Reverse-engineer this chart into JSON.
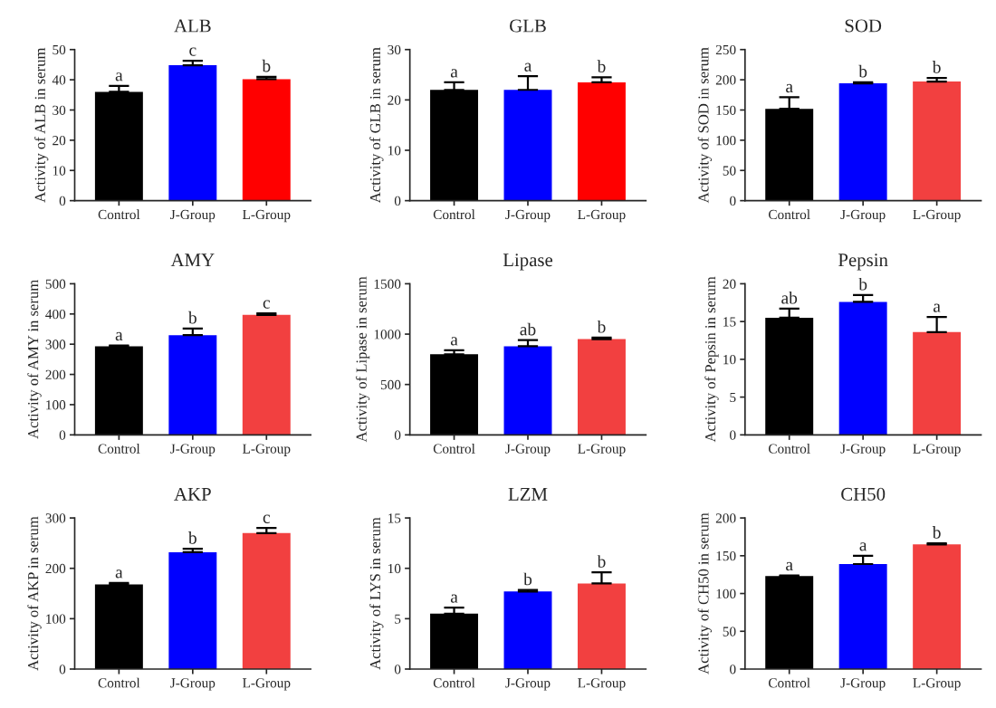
{
  "chart_data": [
    {
      "type": "bar",
      "title": "ALB",
      "ylabel": "Activity of ALB in serum",
      "categories": [
        "Control",
        "J-Group",
        "L-Group"
      ],
      "values": [
        36,
        44.8,
        40.2
      ],
      "colors": [
        "#000000",
        "#0000ff",
        "#ff0000"
      ],
      "errors": [
        [
          36,
          38
        ],
        [
          44.8,
          46.3
        ],
        [
          40.2,
          41
        ]
      ],
      "ylim": [
        0,
        50
      ],
      "yticks": [
        0,
        10,
        20,
        30,
        40,
        50
      ],
      "annotations": [
        {
          "text": "a",
          "x": "Control",
          "y": 38
        },
        {
          "text": "c",
          "x": "J-Group",
          "y": 46.3
        },
        {
          "text": "b",
          "x": "L-Group",
          "y": 41
        }
      ]
    },
    {
      "type": "bar",
      "title": "GLB",
      "ylabel": "Activity of GLB in serum",
      "categories": [
        "Control",
        "J-Group",
        "L-Group"
      ],
      "values": [
        22,
        22,
        23.5
      ],
      "colors": [
        "#000000",
        "#0000ff",
        "#ff0000"
      ],
      "errors": [
        [
          22,
          23.5
        ],
        [
          22,
          24.7
        ],
        [
          23.5,
          24.5
        ]
      ],
      "ylim": [
        0,
        30
      ],
      "yticks": [
        0,
        10,
        20,
        30
      ],
      "annotations": [
        {
          "text": "a",
          "x": "Control",
          "y": 23.5
        },
        {
          "text": "a",
          "x": "J-Group",
          "y": 24.7
        },
        {
          "text": "b",
          "x": "L-Group",
          "y": 24.5
        }
      ]
    },
    {
      "type": "bar",
      "title": "SOD",
      "ylabel": "Activity of SOD in serum",
      "categories": [
        "Control",
        "J-Group",
        "L-Group"
      ],
      "values": [
        152,
        194,
        197
      ],
      "colors": [
        "#000000",
        "#0000ff",
        "#f24040"
      ],
      "errors": [
        [
          152,
          171
        ],
        [
          194,
          196
        ],
        [
          197,
          203
        ]
      ],
      "ylim": [
        0,
        250
      ],
      "yticks": [
        0,
        50,
        100,
        150,
        200,
        250
      ],
      "annotations": [
        {
          "text": "a",
          "x": "Control",
          "y": 171
        },
        {
          "text": "b",
          "x": "J-Group",
          "y": 196
        },
        {
          "text": "b",
          "x": "L-Group",
          "y": 203
        }
      ]
    },
    {
      "type": "bar",
      "title": "AMY",
      "ylabel": "Activity of AMY in serum",
      "categories": [
        "Control",
        "J-Group",
        "L-Group"
      ],
      "values": [
        293,
        330,
        397
      ],
      "colors": [
        "#000000",
        "#0000ff",
        "#f24040"
      ],
      "errors": [
        [
          293,
          296
        ],
        [
          330,
          352
        ],
        [
          397,
          402
        ]
      ],
      "ylim": [
        0,
        500
      ],
      "yticks": [
        0,
        100,
        200,
        300,
        400,
        500
      ],
      "annotations": [
        {
          "text": "a",
          "x": "Control",
          "y": 296
        },
        {
          "text": "b",
          "x": "J-Group",
          "y": 352
        },
        {
          "text": "c",
          "x": "L-Group",
          "y": 402
        }
      ]
    },
    {
      "type": "bar",
      "title": "Lipase",
      "ylabel": "Activity of Lipase in serum",
      "categories": [
        "Control",
        "J-Group",
        "L-Group"
      ],
      "values": [
        800,
        880,
        950
      ],
      "colors": [
        "#000000",
        "#0000ff",
        "#f24040"
      ],
      "errors": [
        [
          800,
          840
        ],
        [
          880,
          940
        ],
        [
          950,
          965
        ]
      ],
      "ylim": [
        0,
        1500
      ],
      "yticks": [
        0,
        500,
        1000,
        1500
      ],
      "annotations": [
        {
          "text": "a",
          "x": "Control",
          "y": 840
        },
        {
          "text": "ab",
          "x": "J-Group",
          "y": 940
        },
        {
          "text": "b",
          "x": "L-Group",
          "y": 965
        }
      ]
    },
    {
      "type": "bar",
      "title": "Pepsin",
      "ylabel": "Activity of Pepsin in serum",
      "categories": [
        "Control",
        "J-Group",
        "L-Group"
      ],
      "values": [
        15.5,
        17.6,
        13.6
      ],
      "colors": [
        "#000000",
        "#0000ff",
        "#f24040"
      ],
      "errors": [
        [
          15.5,
          16.7
        ],
        [
          17.6,
          18.5
        ],
        [
          13.6,
          15.6
        ]
      ],
      "ylim": [
        0,
        20
      ],
      "yticks": [
        0,
        5,
        10,
        15,
        20
      ],
      "annotations": [
        {
          "text": "ab",
          "x": "Control",
          "y": 16.7
        },
        {
          "text": "b",
          "x": "J-Group",
          "y": 18.5
        },
        {
          "text": "a",
          "x": "L-Group",
          "y": 15.6
        }
      ]
    },
    {
      "type": "bar",
      "title": "AKP",
      "ylabel": "Activity of AKP in serum",
      "categories": [
        "Control",
        "J-Group",
        "L-Group"
      ],
      "values": [
        168,
        232,
        270
      ],
      "colors": [
        "#000000",
        "#0000ff",
        "#f24040"
      ],
      "errors": [
        [
          168,
          171
        ],
        [
          232,
          239
        ],
        [
          270,
          280
        ]
      ],
      "ylim": [
        0,
        300
      ],
      "yticks": [
        0,
        100,
        200,
        300
      ],
      "annotations": [
        {
          "text": "a",
          "x": "Control",
          "y": 171
        },
        {
          "text": "b",
          "x": "J-Group",
          "y": 239
        },
        {
          "text": "c",
          "x": "L-Group",
          "y": 280
        }
      ]
    },
    {
      "type": "bar",
      "title": "LZM",
      "ylabel": "Activity of LYS in serum",
      "categories": [
        "Control",
        "J-Group",
        "L-Group"
      ],
      "values": [
        5.5,
        7.7,
        8.5
      ],
      "colors": [
        "#000000",
        "#0000ff",
        "#f24040"
      ],
      "errors": [
        [
          5.5,
          6.1
        ],
        [
          7.7,
          7.85
        ],
        [
          8.5,
          9.6
        ]
      ],
      "ylim": [
        0,
        15
      ],
      "yticks": [
        0,
        5,
        10,
        15
      ],
      "annotations": [
        {
          "text": "a",
          "x": "Control",
          "y": 6.1
        },
        {
          "text": "b",
          "x": "J-Group",
          "y": 7.85
        },
        {
          "text": "b",
          "x": "L-Group",
          "y": 9.6
        }
      ]
    },
    {
      "type": "bar",
      "title": "CH50",
      "ylabel": "Activity of CH50 in serum",
      "categories": [
        "Control",
        "J-Group",
        "L-Group"
      ],
      "values": [
        123,
        139,
        165
      ],
      "colors": [
        "#000000",
        "#0000ff",
        "#f24040"
      ],
      "errors": [
        [
          123,
          124
        ],
        [
          139,
          150
        ],
        [
          165,
          166.5
        ]
      ],
      "ylim": [
        0,
        200
      ],
      "yticks": [
        0,
        50,
        100,
        150,
        200
      ],
      "annotations": [
        {
          "text": "a",
          "x": "Control",
          "y": 124
        },
        {
          "text": "a",
          "x": "J-Group",
          "y": 150
        },
        {
          "text": "b",
          "x": "L-Group",
          "y": 166.5
        }
      ]
    }
  ]
}
